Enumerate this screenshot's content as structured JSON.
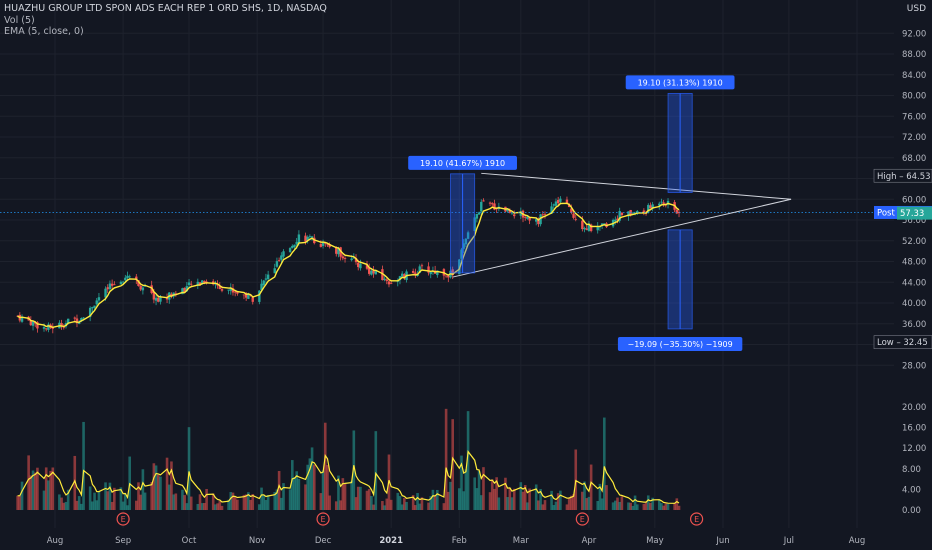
{
  "header": {
    "symbol": "HUAZHU GROUP LTD SPON ADS EACH REP 1 ORD SHS, 1D, NASDAQ",
    "volume": "Vol (5)",
    "ema": "EMA (5, close, 0)",
    "currency": "USD"
  },
  "colors": {
    "background": "#131722",
    "candle_up": "#26a69a",
    "candle_down": "#ef5350",
    "ema": "#ffeb3b",
    "measure_fill": "#2962ff",
    "measure_label": "#2962ff",
    "triangle": "#d1d4dc",
    "axis_text": "#b2b5be",
    "post_line": "#2196f3",
    "last_price": "#26a69a"
  },
  "chart_data": {
    "type": "candlestick",
    "x_axis": {
      "ticks": [
        "Aug",
        "Sep",
        "Oct",
        "Nov",
        "Dec",
        "2021",
        "Feb",
        "Mar",
        "Apr",
        "May",
        "Jun",
        "Jul",
        "Aug"
      ]
    },
    "price_axis": {
      "ticks": [
        92.0,
        88.0,
        84.0,
        80.0,
        76.0,
        72.0,
        68.0,
        64.0,
        60.0,
        56.0,
        52.0,
        48.0,
        44.0,
        40.0,
        36.0,
        32.0,
        28.0
      ],
      "ylim": [
        26,
        96
      ]
    },
    "volume_axis": {
      "ticks": [
        20.0,
        16.0,
        12.0,
        8.0,
        4.0,
        0.0
      ]
    },
    "price_labels": [
      {
        "name": "High",
        "text": "High",
        "value": 64.53
      },
      {
        "name": "Post",
        "text": "Post",
        "value": 57.45
      },
      {
        "name": "Last",
        "text": "",
        "value": 57.33
      },
      {
        "name": "Low",
        "text": "Low",
        "value": 32.45
      }
    ],
    "price_anchors": [
      {
        "date": "2020-07-15",
        "price": 37.5
      },
      {
        "date": "2020-07-28",
        "price": 35.0
      },
      {
        "date": "2020-08-12",
        "price": 37.0
      },
      {
        "date": "2020-08-26",
        "price": 43.0
      },
      {
        "date": "2020-09-03",
        "price": 45.5
      },
      {
        "date": "2020-09-17",
        "price": 40.5
      },
      {
        "date": "2020-10-08",
        "price": 44.5
      },
      {
        "date": "2020-10-20",
        "price": 42.5
      },
      {
        "date": "2020-10-30",
        "price": 41.0
      },
      {
        "date": "2020-11-09",
        "price": 47.0
      },
      {
        "date": "2020-11-20",
        "price": 53.0
      },
      {
        "date": "2020-12-03",
        "price": 51.0
      },
      {
        "date": "2020-12-17",
        "price": 47.5
      },
      {
        "date": "2020-12-31",
        "price": 44.0
      },
      {
        "date": "2021-01-15",
        "price": 46.5
      },
      {
        "date": "2021-01-29",
        "price": 45.5
      },
      {
        "date": "2021-02-03",
        "price": 51.0
      },
      {
        "date": "2021-02-11",
        "price": 59.0
      },
      {
        "date": "2021-02-19",
        "price": 58.5
      },
      {
        "date": "2021-03-01",
        "price": 57.0
      },
      {
        "date": "2021-03-09",
        "price": 56.0
      },
      {
        "date": "2021-03-19",
        "price": 60.0
      },
      {
        "date": "2021-03-29",
        "price": 55.0
      },
      {
        "date": "2021-04-05",
        "price": 54.0
      },
      {
        "date": "2021-04-15",
        "price": 57.0
      },
      {
        "date": "2021-04-26",
        "price": 57.5
      },
      {
        "date": "2021-05-04",
        "price": 60.0
      },
      {
        "date": "2021-05-12",
        "price": 57.3
      }
    ],
    "volume_anchors": [
      {
        "date": "2020-07-15",
        "vol": 3
      },
      {
        "date": "2020-07-23",
        "vol": 9
      },
      {
        "date": "2020-08-05",
        "vol": 3
      },
      {
        "date": "2020-08-26",
        "vol": 4
      },
      {
        "date": "2020-09-03",
        "vol": 2
      },
      {
        "date": "2020-09-17",
        "vol": 8
      },
      {
        "date": "2020-09-28",
        "vol": 4
      },
      {
        "date": "2020-10-15",
        "vol": 2
      },
      {
        "date": "2020-11-05",
        "vol": 3
      },
      {
        "date": "2020-11-20",
        "vol": 9
      },
      {
        "date": "2020-12-10",
        "vol": 4
      },
      {
        "date": "2020-12-31",
        "vol": 2
      },
      {
        "date": "2021-01-25",
        "vol": 3
      },
      {
        "date": "2021-02-02",
        "vol": 8
      },
      {
        "date": "2021-02-15",
        "vol": 5
      },
      {
        "date": "2021-03-10",
        "vol": 3
      },
      {
        "date": "2021-03-25",
        "vol": 2
      },
      {
        "date": "2021-04-01",
        "vol": 6
      },
      {
        "date": "2021-04-12",
        "vol": 2
      },
      {
        "date": "2021-05-12",
        "vol": 1.5
      }
    ],
    "triangle": {
      "upper": {
        "start": {
          "date": "2021-02-11",
          "price": 65.0
        },
        "end": {
          "date": "2021-07-02",
          "price": 60.0
        }
      },
      "lower": {
        "start": {
          "date": "2021-01-29",
          "price": 45.0
        },
        "end": {
          "date": "2021-07-02",
          "price": 60.0
        }
      }
    },
    "measurements": [
      {
        "name": "left-range",
        "text": "19.10 (41.67%) 1910",
        "start_date": "2021-01-28",
        "end_date": "2021-02-08",
        "from": 45.8,
        "to": 64.9
      },
      {
        "name": "up-target",
        "text": "19.10 (31.13%) 1910",
        "start_date": "2021-05-07",
        "end_date": "2021-05-18",
        "from": 61.3,
        "to": 80.4
      },
      {
        "name": "down-target",
        "text": "−19.09 (−35.30%) −1909",
        "start_date": "2021-05-07",
        "end_date": "2021-05-18",
        "from": 54.1,
        "to": 35.0
      }
    ],
    "earnings_markers": [
      {
        "date": "2020-09-01",
        "label": "E"
      },
      {
        "date": "2020-12-01",
        "label": "E"
      },
      {
        "date": "2021-03-29",
        "label": "E"
      },
      {
        "date": "2021-05-20",
        "label": "E"
      }
    ],
    "last_date": "2021-05-12"
  }
}
